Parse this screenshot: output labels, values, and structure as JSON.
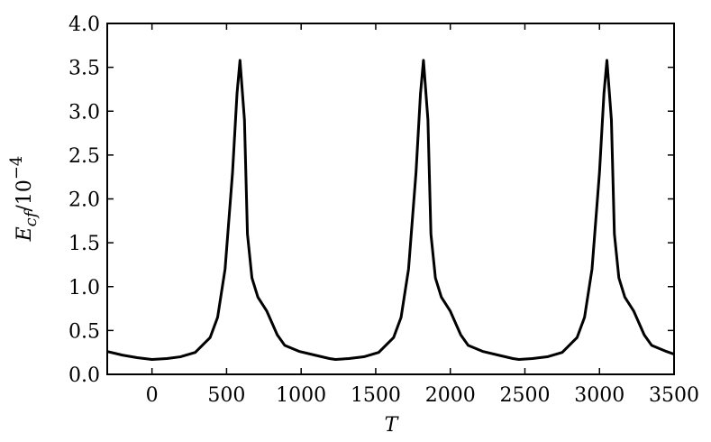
{
  "chart_data": {
    "type": "line",
    "ylabel": {
      "main": "E",
      "sub": "cf",
      "rest": "/10",
      "sup": "−4"
    },
    "xlabel": "T",
    "x": [
      -300,
      -200,
      -100,
      0,
      100,
      190,
      290,
      390,
      440,
      490,
      540,
      570,
      590,
      620,
      640,
      670,
      710,
      770,
      840,
      890,
      990,
      1090,
      1190,
      1230,
      1320,
      1420,
      1520,
      1620,
      1670,
      1720,
      1770,
      1800,
      1820,
      1850,
      1870,
      1900,
      1940,
      2000,
      2070,
      2120,
      2220,
      2320,
      2420,
      2460,
      2550,
      2650,
      2750,
      2850,
      2900,
      2950,
      3000,
      3030,
      3050,
      3080,
      3100,
      3130,
      3170,
      3230,
      3300,
      3350,
      3450,
      3500
    ],
    "series": [
      {
        "color": "#000000",
        "values": [
          0.26,
          0.22,
          0.19,
          0.17,
          0.18,
          0.2,
          0.25,
          0.42,
          0.65,
          1.2,
          2.3,
          3.2,
          3.58,
          2.9,
          1.6,
          1.1,
          0.88,
          0.72,
          0.45,
          0.33,
          0.26,
          0.22,
          0.18,
          0.17,
          0.18,
          0.2,
          0.25,
          0.42,
          0.65,
          1.2,
          2.3,
          3.2,
          3.58,
          2.9,
          1.6,
          1.1,
          0.88,
          0.72,
          0.45,
          0.33,
          0.26,
          0.22,
          0.18,
          0.17,
          0.18,
          0.2,
          0.25,
          0.42,
          0.65,
          1.2,
          2.3,
          3.2,
          3.58,
          2.9,
          1.6,
          1.1,
          0.88,
          0.72,
          0.45,
          0.33,
          0.26,
          0.23
        ]
      }
    ],
    "xlim": [
      -300,
      3500
    ],
    "ylim": [
      0,
      4
    ],
    "xticks": [
      0,
      500,
      1000,
      1500,
      2000,
      2500,
      3000,
      3500
    ],
    "yticks": [
      {
        "value": 0,
        "label": "0.0"
      },
      0.5,
      {
        "value": 1,
        "label": "1.0"
      },
      1.5,
      {
        "value": 2,
        "label": "2.0"
      },
      2.5,
      {
        "value": 3,
        "label": "3.0"
      },
      3.5,
      {
        "value": 4,
        "label": "4.0"
      }
    ]
  }
}
